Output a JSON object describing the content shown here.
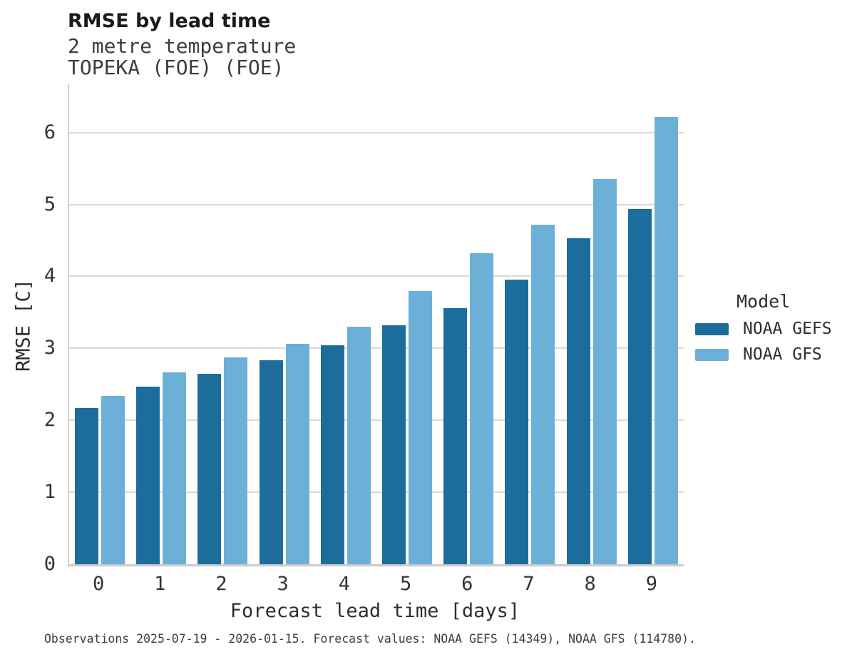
{
  "header": {
    "title": "RMSE by lead time",
    "subtitle_line1": "2 metre temperature",
    "subtitle_line2": "TOPEKA (FOE) (FOE)"
  },
  "chart_data": {
    "type": "bar",
    "title": "RMSE by lead time",
    "subtitle": "2 metre temperature",
    "station": "TOPEKA (FOE) (FOE)",
    "categories": [
      "0",
      "1",
      "2",
      "3",
      "4",
      "5",
      "6",
      "7",
      "8",
      "9"
    ],
    "series": [
      {
        "name": "NOAA GEFS",
        "color": "#1d6d9c",
        "values": [
          2.17,
          2.47,
          2.65,
          2.83,
          3.04,
          3.32,
          3.56,
          3.95,
          4.53,
          4.94
        ]
      },
      {
        "name": "NOAA GFS",
        "color": "#6cb0d8",
        "values": [
          2.34,
          2.67,
          2.87,
          3.06,
          3.3,
          3.8,
          4.32,
          4.72,
          5.35,
          6.21
        ]
      }
    ],
    "xlabel": "Forecast lead time [days]",
    "ylabel": "RMSE [C]",
    "ylim": [
      0,
      6.67
    ],
    "yticks": [
      0,
      1,
      2,
      3,
      4,
      5,
      6
    ],
    "legend_title": "Model",
    "legend_position": "right",
    "grid": true
  },
  "footer": {
    "caption": "Observations 2025-07-19 - 2026-01-15. Forecast values: NOAA GEFS (14349), NOAA GFS (114780)."
  },
  "colors": {
    "gefs": "#1d6d9c",
    "gfs": "#6cb0d8",
    "gridline": "#d9d9d9",
    "axis": "#cbcbcb",
    "text": "#2e2e2e"
  }
}
